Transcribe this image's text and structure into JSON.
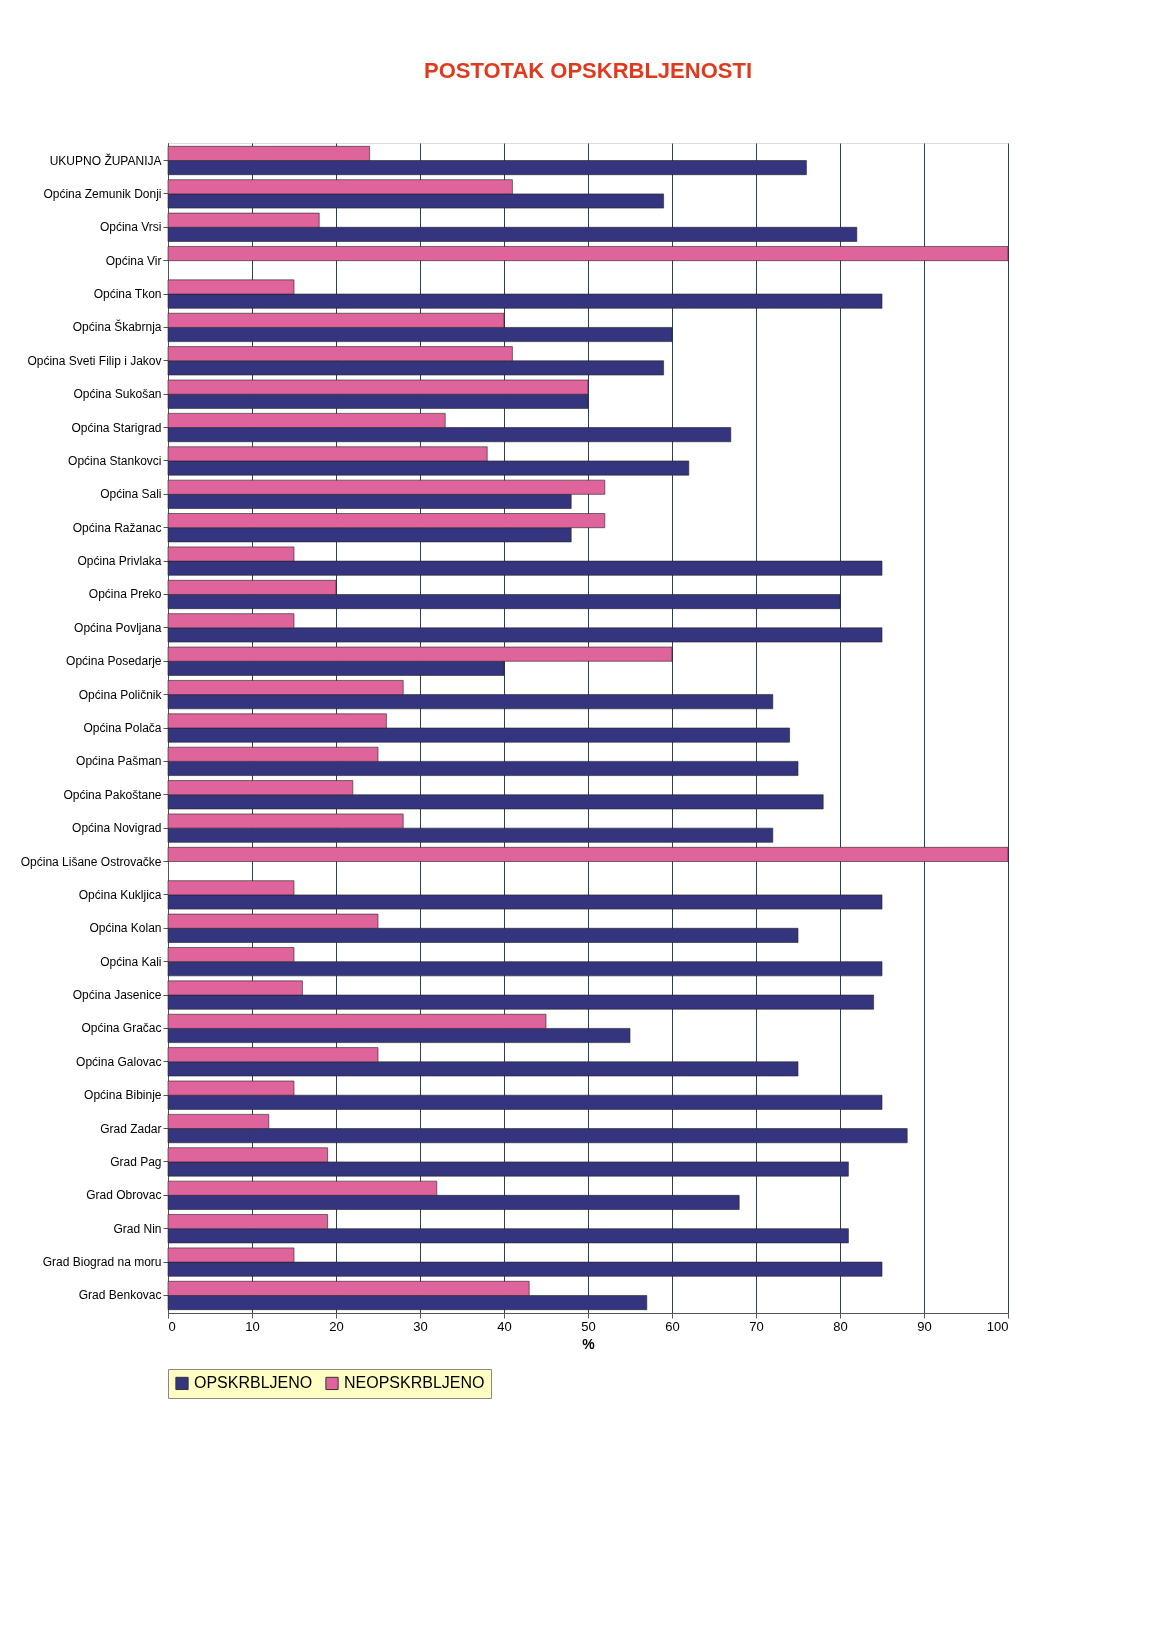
{
  "chart_data": {
    "type": "bar",
    "orientation": "horizontal",
    "title": "POSTOTAK OPSKRBLJENOSTI",
    "xlabel": "%",
    "categories": [
      "UKUPNO ŽUPANIJA",
      "Općina Zemunik Donji",
      "Općina Vrsi",
      "Općina Vir",
      "Općina Tkon",
      "Općina Škabrnja",
      "Općina Sveti Filip i Jakov",
      "Općina Sukošan",
      "Općina Starigrad",
      "Općina Stankovci",
      "Općina Sali",
      "Općina Ražanac",
      "Općina Privlaka",
      "Općina Preko",
      "Općina Povljana",
      "Općina Posedarje",
      "Općina Poličnik",
      "Općina Polača",
      "Općina Pašman",
      "Općina Pakoštane",
      "Općina Novigrad",
      "Općina Lišane Ostrovačke",
      "Općina Kukljica",
      "Općina Kolan",
      "Općina Kali",
      "Općina Jasenice",
      "Općina Gračac",
      "Općina Galovac",
      "Općina Bibinje",
      "Grad Zadar",
      "Grad Pag",
      "Grad Obrovac",
      "Grad Nin",
      "Grad Biograd na moru",
      "Grad Benkovac"
    ],
    "series": [
      {
        "name": "OPSKRBLJENO",
        "color": "#35357f",
        "values": [
          76,
          59,
          82,
          0,
          85,
          60,
          59,
          50,
          67,
          62,
          48,
          48,
          85,
          80,
          85,
          40,
          72,
          74,
          75,
          78,
          72,
          0,
          85,
          75,
          85,
          84,
          55,
          75,
          85,
          88,
          81,
          68,
          81,
          85,
          57
        ]
      },
      {
        "name": "NEOPSKRBLJENO",
        "color": "#e0649c",
        "values": [
          24,
          41,
          18,
          100,
          15,
          40,
          41,
          50,
          33,
          38,
          52,
          52,
          15,
          20,
          15,
          60,
          28,
          26,
          25,
          22,
          28,
          100,
          15,
          25,
          15,
          16,
          45,
          25,
          15,
          12,
          19,
          32,
          19,
          15,
          43
        ]
      }
    ],
    "xlim": [
      0,
      100
    ],
    "xticks": [
      0,
      10,
      20,
      30,
      40,
      50,
      60,
      70,
      80,
      90,
      100
    ],
    "grid": "x",
    "legend": "bottom"
  }
}
